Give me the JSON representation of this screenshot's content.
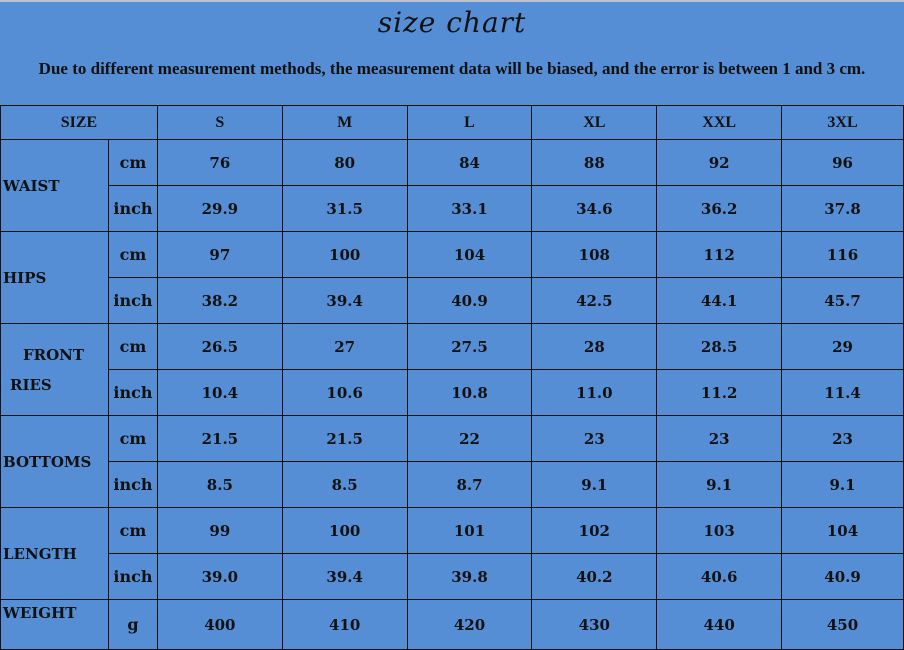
{
  "title": "size chart",
  "note": "Due to different measurement methods, the measurement data will be biased, and the error is between 1 and 3 cm.",
  "background_color": "#558ed5",
  "header": {
    "size_label": "SIZE",
    "sizes": [
      "S",
      "M",
      "L",
      "XL",
      "XXL",
      "3XL"
    ]
  },
  "groups": [
    {
      "label": "WAIST",
      "rows": [
        {
          "unit": "cm",
          "values": [
            "76",
            "80",
            "84",
            "88",
            "92",
            "96"
          ]
        },
        {
          "unit": "inch",
          "values": [
            "29.9",
            "31.5",
            "33.1",
            "34.6",
            "36.2",
            "37.8"
          ]
        }
      ]
    },
    {
      "label": "HIPS",
      "rows": [
        {
          "unit": "cm",
          "values": [
            "97",
            "100",
            "104",
            "108",
            "112",
            "116"
          ]
        },
        {
          "unit": "inch",
          "values": [
            "38.2",
            "39.4",
            "40.9",
            "42.5",
            "44.1",
            "45.7"
          ]
        }
      ]
    },
    {
      "label": "FRONT",
      "label2": "RIES",
      "rows": [
        {
          "unit": "cm",
          "values": [
            "26.5",
            "27",
            "27.5",
            "28",
            "28.5",
            "29"
          ]
        },
        {
          "unit": "inch",
          "values": [
            "10.4",
            "10.6",
            "10.8",
            "11.0",
            "11.2",
            "11.4"
          ]
        }
      ]
    },
    {
      "label": "BOTTOMS",
      "rows": [
        {
          "unit": "cm",
          "values": [
            "21.5",
            "21.5",
            "22",
            "23",
            "23",
            "23"
          ]
        },
        {
          "unit": "inch",
          "values": [
            "8.5",
            "8.5",
            "8.7",
            "9.1",
            "9.1",
            "9.1"
          ]
        }
      ]
    },
    {
      "label": "LENGTH",
      "rows": [
        {
          "unit": "cm",
          "values": [
            "99",
            "100",
            "101",
            "102",
            "103",
            "104"
          ]
        },
        {
          "unit": "inch",
          "values": [
            "39.0",
            "39.4",
            "39.8",
            "40.2",
            "40.6",
            "40.9"
          ]
        }
      ]
    },
    {
      "label": "WEIGHT",
      "rows": [
        {
          "unit": "g",
          "values": [
            "400",
            "410",
            "420",
            "430",
            "440",
            "450"
          ]
        }
      ]
    }
  ]
}
